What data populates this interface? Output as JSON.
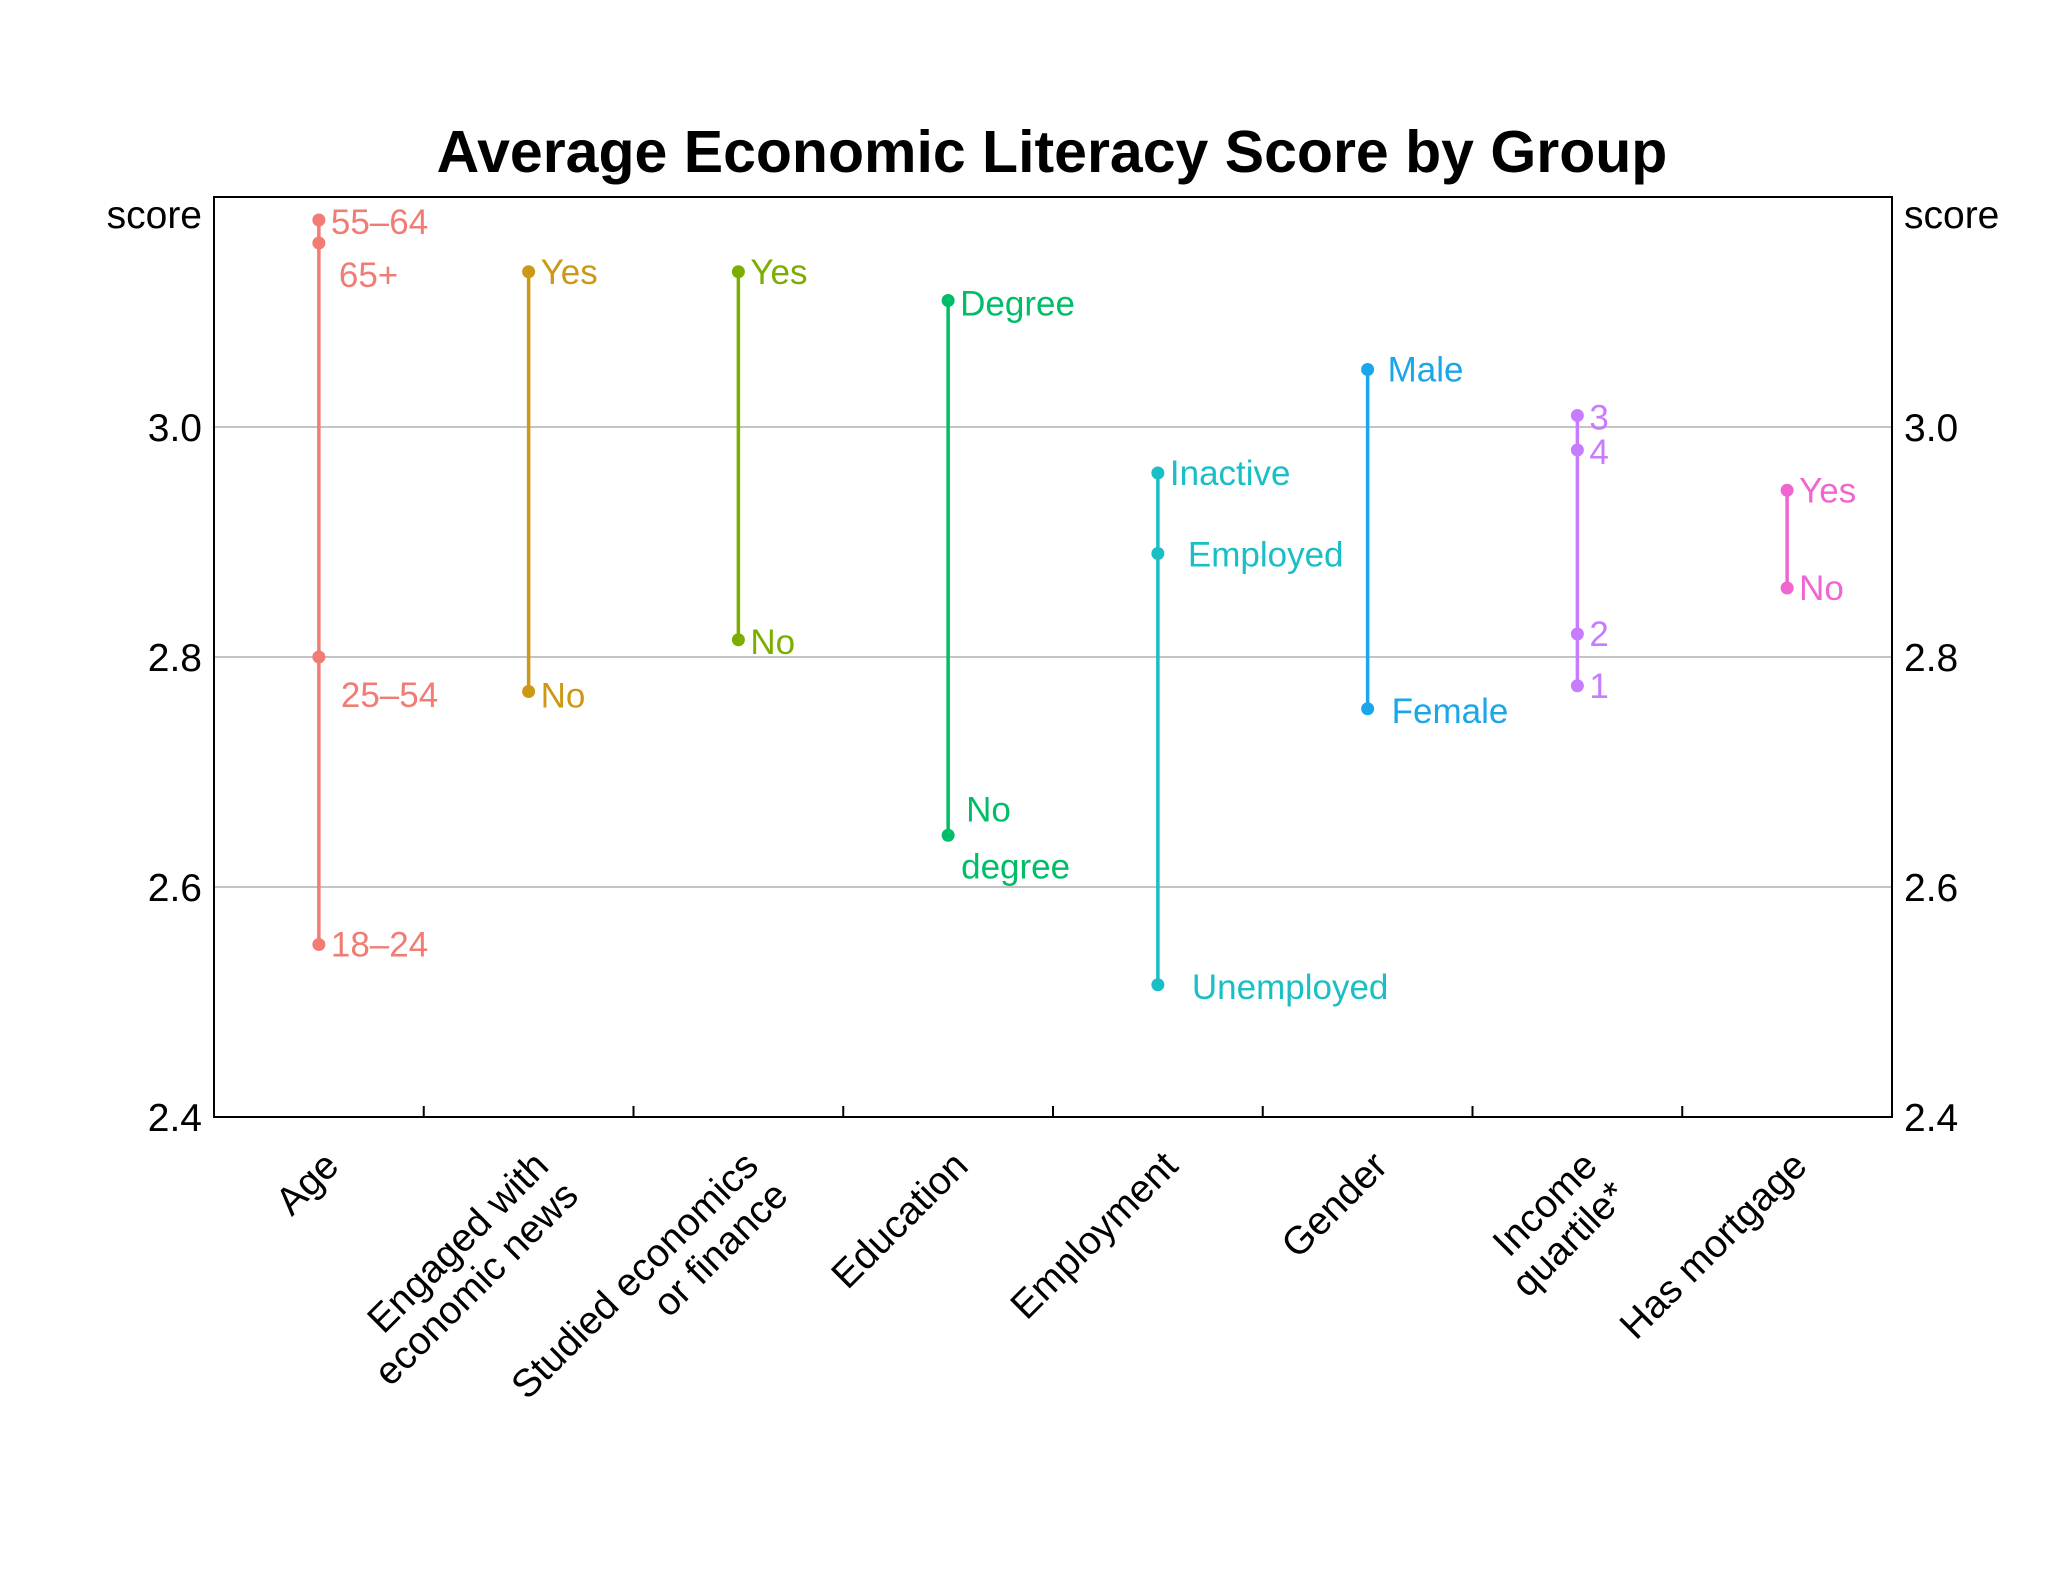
{
  "chart_data": {
    "type": "range-dot",
    "title": "Average Economic Literacy Score by Group",
    "y_unit_left": "score",
    "y_unit_right": "score",
    "ylim": [
      2.4,
      3.2
    ],
    "yticks": [
      {
        "value": 2.4,
        "label": "2.4"
      },
      {
        "value": 2.6,
        "label": "2.6"
      },
      {
        "value": 2.8,
        "label": "2.8"
      },
      {
        "value": 3.0,
        "label": "3.0"
      }
    ],
    "gridlines": [
      2.6,
      2.8,
      3.0
    ],
    "groups": [
      {
        "name": "Age",
        "label_lines": [
          "Age"
        ],
        "color": "#F07C74",
        "points": [
          {
            "label": "55–64",
            "value": 3.18
          },
          {
            "label": "65+",
            "value": 3.16
          },
          {
            "label": "25–54",
            "value": 2.8
          },
          {
            "label": "18–24",
            "value": 2.55
          }
        ]
      },
      {
        "name": "Engaged with economic news",
        "label_lines": [
          "Engaged with",
          "economic news"
        ],
        "color": "#CD9815",
        "points": [
          {
            "label": "Yes",
            "value": 3.135
          },
          {
            "label": "No",
            "value": 2.77
          }
        ]
      },
      {
        "name": "Studied economics or finance",
        "label_lines": [
          "Studied economics",
          "or finance"
        ],
        "color": "#7CAE00",
        "points": [
          {
            "label": "Yes",
            "value": 3.135
          },
          {
            "label": "No",
            "value": 2.815
          }
        ]
      },
      {
        "name": "Education",
        "label_lines": [
          "Education"
        ],
        "color": "#00BE67",
        "points": [
          {
            "label": "Degree",
            "value": 3.11
          },
          {
            "label": "No degree",
            "value": 2.645
          }
        ]
      },
      {
        "name": "Employment",
        "label_lines": [
          "Employment"
        ],
        "color": "#19BFC4",
        "points": [
          {
            "label": "Inactive",
            "value": 2.96
          },
          {
            "label": "Employed",
            "value": 2.89
          },
          {
            "label": "Unemployed",
            "value": 2.515
          }
        ]
      },
      {
        "name": "Gender",
        "label_lines": [
          "Gender"
        ],
        "color": "#1AA6EA",
        "points": [
          {
            "label": "Male",
            "value": 3.05
          },
          {
            "label": "Female",
            "value": 2.755
          }
        ]
      },
      {
        "name": "Income quartile*",
        "label_lines": [
          "Income",
          "quartile*"
        ],
        "color": "#C77CFF",
        "points": [
          {
            "label": "3",
            "value": 3.01
          },
          {
            "label": "4",
            "value": 2.98
          },
          {
            "label": "2",
            "value": 2.82
          },
          {
            "label": "1",
            "value": 2.775
          }
        ]
      },
      {
        "name": "Has mortgage",
        "label_lines": [
          "Has mortgage"
        ],
        "color": "#F065D0",
        "points": [
          {
            "label": "Yes",
            "value": 2.945
          },
          {
            "label": "No",
            "value": 2.86
          }
        ]
      }
    ]
  }
}
